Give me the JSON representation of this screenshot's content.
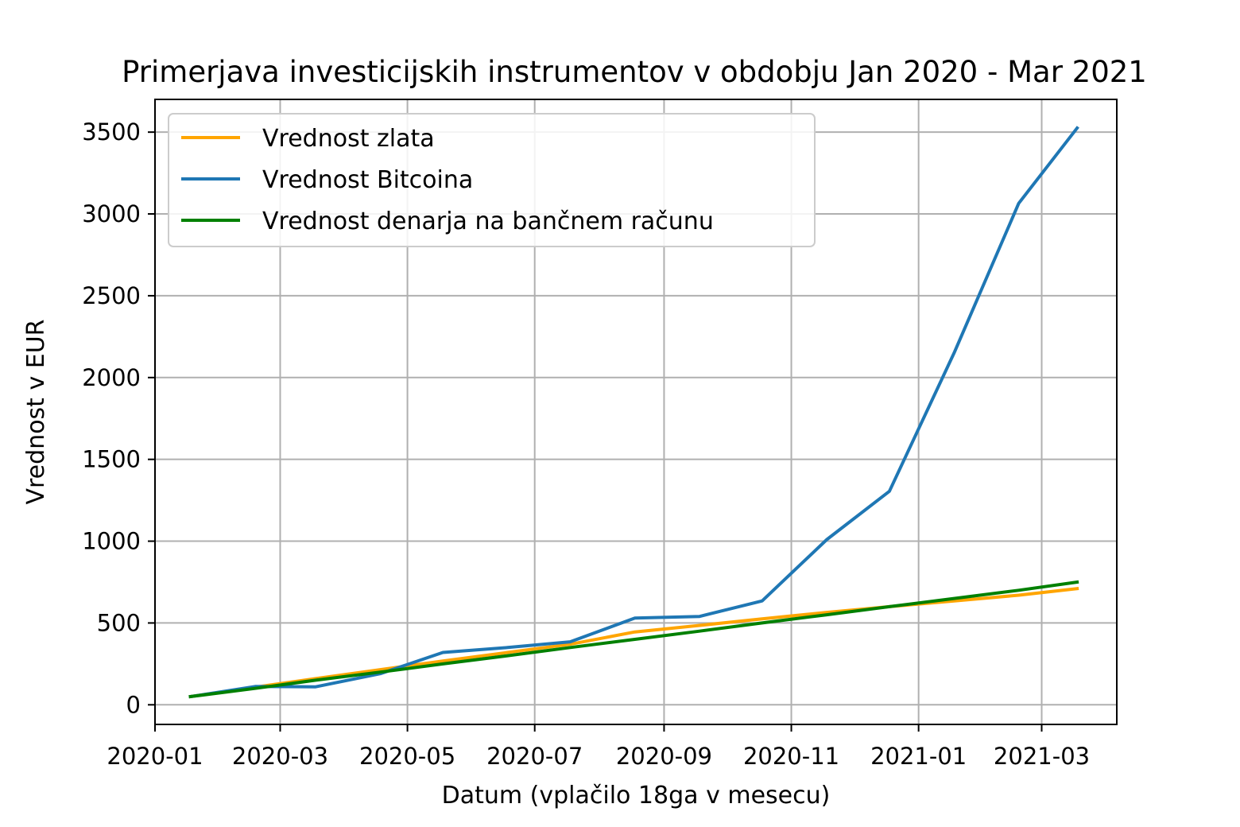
{
  "chart_data": {
    "type": "line",
    "title": "Primerjava investicijskih instrumentov v obdobju Jan 2020 - Mar 2021",
    "xlabel": "Datum (vplačilo 18ga v mesecu)",
    "ylabel": "Vrednost v EUR",
    "x": [
      "2020-01-18",
      "2020-02-18",
      "2020-03-18",
      "2020-04-18",
      "2020-05-18",
      "2020-06-18",
      "2020-07-18",
      "2020-08-18",
      "2020-09-18",
      "2020-10-18",
      "2020-11-18",
      "2020-12-18",
      "2021-01-18",
      "2021-02-18",
      "2021-03-18"
    ],
    "xticks": [
      "2020-01",
      "2020-03",
      "2020-05",
      "2020-07",
      "2020-09",
      "2020-11",
      "2021-01",
      "2021-03"
    ],
    "xlim": [
      "2020-01-01",
      "2021-04-06"
    ],
    "yticks": [
      0,
      500,
      1000,
      1500,
      2000,
      2500,
      3000,
      3500
    ],
    "ylim": [
      -120,
      3700
    ],
    "grid": true,
    "legend_position": "top-left",
    "series": [
      {
        "name": "Vrednost zlata",
        "color": "#ffa500",
        "values": [
          50,
          108,
          160,
          215,
          268,
          320,
          370,
          445,
          485,
          525,
          565,
          600,
          635,
          670,
          710
        ]
      },
      {
        "name": "Vrednost Bitcoina",
        "color": "#1f77b4",
        "values": [
          50,
          112,
          110,
          190,
          320,
          350,
          385,
          530,
          540,
          635,
          1010,
          1305,
          2150,
          3065,
          3525
        ]
      },
      {
        "name": "Vrednost denarja na bančnem računu",
        "color": "#008000",
        "values": [
          50,
          100,
          150,
          200,
          250,
          300,
          350,
          400,
          450,
          500,
          550,
          600,
          650,
          700,
          750
        ]
      }
    ]
  }
}
